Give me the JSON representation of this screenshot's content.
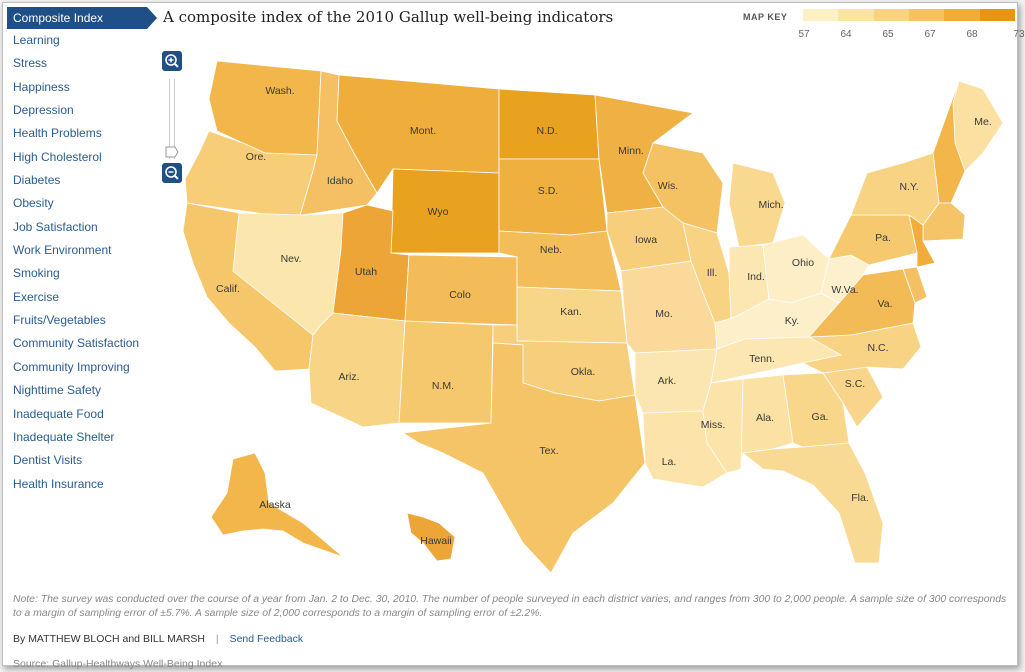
{
  "title": "A composite index of the 2010 Gallup well-being indicators",
  "sidebar": {
    "items": [
      {
        "label": "Composite Index",
        "active": true
      },
      {
        "label": "Learning"
      },
      {
        "label": "Stress"
      },
      {
        "label": "Happiness"
      },
      {
        "label": "Depression"
      },
      {
        "label": "Health Problems"
      },
      {
        "label": "High Cholesterol"
      },
      {
        "label": "Diabetes"
      },
      {
        "label": "Obesity"
      },
      {
        "label": "Job Satisfaction"
      },
      {
        "label": "Work Environment"
      },
      {
        "label": "Smoking"
      },
      {
        "label": "Exercise"
      },
      {
        "label": "Fruits/Vegetables"
      },
      {
        "label": "Community Satisfaction"
      },
      {
        "label": "Community Improving"
      },
      {
        "label": "Nighttime Safety"
      },
      {
        "label": "Inadequate Food"
      },
      {
        "label": "Inadequate Shelter"
      },
      {
        "label": "Dentist Visits"
      },
      {
        "label": "Health Insurance"
      }
    ]
  },
  "map_key": {
    "label": "MAP KEY",
    "ticks": [
      "57",
      "64",
      "65",
      "67",
      "68",
      "73"
    ],
    "colors": [
      "#fdf0c4",
      "#fbe3a3",
      "#f8d382",
      "#f5c25f",
      "#f0ad35",
      "#e6960f"
    ]
  },
  "zoom": {
    "in_icon": "zoom-in-icon",
    "out_icon": "zoom-out-icon"
  },
  "map": {
    "states": [
      {
        "abbr": "Wash.",
        "color": "#f2b64a"
      },
      {
        "abbr": "Ore.",
        "color": "#f7cd78"
      },
      {
        "abbr": "Calif.",
        "color": "#f6c76a"
      },
      {
        "abbr": "Idaho",
        "color": "#f4c063"
      },
      {
        "abbr": "Nev.",
        "color": "#fbe6ad"
      },
      {
        "abbr": "Mont.",
        "color": "#efae3c"
      },
      {
        "abbr": "Wyo",
        "color": "#e9a21f"
      },
      {
        "abbr": "Utah",
        "color": "#eea537"
      },
      {
        "abbr": "Colo",
        "color": "#f3bc58"
      },
      {
        "abbr": "Ariz.",
        "color": "#f8d487"
      },
      {
        "abbr": "N.M.",
        "color": "#f6c86d"
      },
      {
        "abbr": "N.D.",
        "color": "#e9a21f"
      },
      {
        "abbr": "S.D.",
        "color": "#efb040"
      },
      {
        "abbr": "Neb.",
        "color": "#f3bd5a"
      },
      {
        "abbr": "Kan.",
        "color": "#f8d689"
      },
      {
        "abbr": "Okla.",
        "color": "#f7cf7c"
      },
      {
        "abbr": "Tex.",
        "color": "#f5c466"
      },
      {
        "abbr": "Minn.",
        "color": "#f0b144"
      },
      {
        "abbr": "Iowa",
        "color": "#f7cf7c"
      },
      {
        "abbr": "Mo.",
        "color": "#fad99a"
      },
      {
        "abbr": "Ark.",
        "color": "#fbe6b2"
      },
      {
        "abbr": "La.",
        "color": "#fbe3aa"
      },
      {
        "abbr": "Wis.",
        "color": "#f5c263"
      },
      {
        "abbr": "Ill.",
        "color": "#f8d384"
      },
      {
        "abbr": "Mich.",
        "color": "#f9d98f"
      },
      {
        "abbr": "Ind.",
        "color": "#fce7b3"
      },
      {
        "abbr": "Ohio",
        "color": "#fdeec6"
      },
      {
        "abbr": "Ky.",
        "color": "#fdefca"
      },
      {
        "abbr": "Tenn.",
        "color": "#fce6b2"
      },
      {
        "abbr": "Miss.",
        "color": "#fbe3aa"
      },
      {
        "abbr": "Ala.",
        "color": "#fbe1a4"
      },
      {
        "abbr": "Ga.",
        "color": "#f8d68a"
      },
      {
        "abbr": "Fla.",
        "color": "#f9da95"
      },
      {
        "abbr": "S.C.",
        "color": "#f8d58a"
      },
      {
        "abbr": "N.C.",
        "color": "#f8d384"
      },
      {
        "abbr": "Va.",
        "color": "#f3bb55"
      },
      {
        "abbr": "W.Va.",
        "color": "#fdf0cc"
      },
      {
        "abbr": "Pa.",
        "color": "#f6c96f"
      },
      {
        "abbr": "N.Y.",
        "color": "#f8d384"
      },
      {
        "abbr": "Me.",
        "color": "#fbe0a2"
      },
      {
        "abbr": "Alaska",
        "color": "#f2b64a"
      },
      {
        "abbr": "Hawaii",
        "color": "#eea537"
      }
    ]
  },
  "note": "Note: The survey was conducted over the course of a year from Jan. 2 to Dec. 30, 2010. The number of people surveyed in each district varies, and ranges from 300 to 2,000 people. A sample size of 300 corresponds to a margin of sampling error of ±5.7%. A sample size of 2,000 corresponds to a margin of sampling error of ±2.2%.",
  "byline": {
    "by": "By",
    "author1": "MATTHEW BLOCH",
    "and": "and",
    "author2": "BILL MARSH",
    "sep": "|",
    "feedback": "Send Feedback"
  },
  "source": "Source: Gallup-Healthways Well-Being Index"
}
